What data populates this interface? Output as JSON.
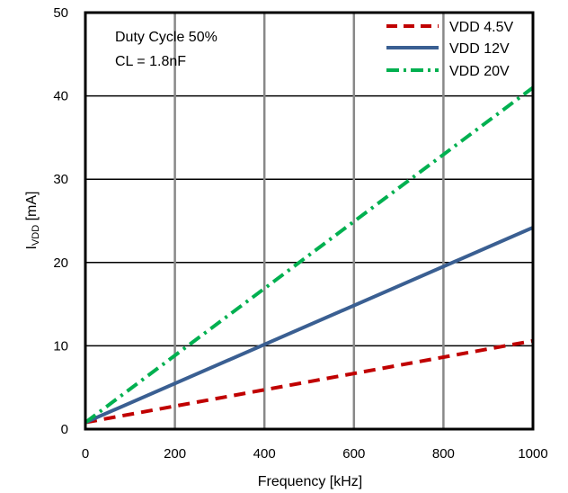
{
  "chart_data": {
    "type": "line",
    "xlabel": "Frequency [kHz]",
    "ylabel_main": "I",
    "ylabel_sub": "VDD",
    "ylabel_unit": " [mA]",
    "xlim": [
      0,
      1000
    ],
    "ylim": [
      0,
      50
    ],
    "xticks": [
      0,
      200,
      400,
      600,
      800,
      1000
    ],
    "yticks": [
      0,
      10,
      20,
      30,
      40,
      50
    ],
    "grid": "horizontal and vertical",
    "legend_position": "top-right",
    "annotations": [
      "Duty Cycle 50%",
      "CL = 1.8nF"
    ],
    "series": [
      {
        "name": "VDD 4.5V",
        "color": "#c00000",
        "dash": "dashed",
        "x": [
          0,
          1000
        ],
        "y": [
          0.8,
          10.6
        ]
      },
      {
        "name": "VDD 12V",
        "color": "#3a5f92",
        "dash": "solid",
        "x": [
          0,
          1000
        ],
        "y": [
          0.8,
          24.2
        ]
      },
      {
        "name": "VDD 20V",
        "color": "#00b050",
        "dash": "dashdot",
        "x": [
          0,
          1000
        ],
        "y": [
          0.8,
          41.0
        ]
      }
    ]
  }
}
